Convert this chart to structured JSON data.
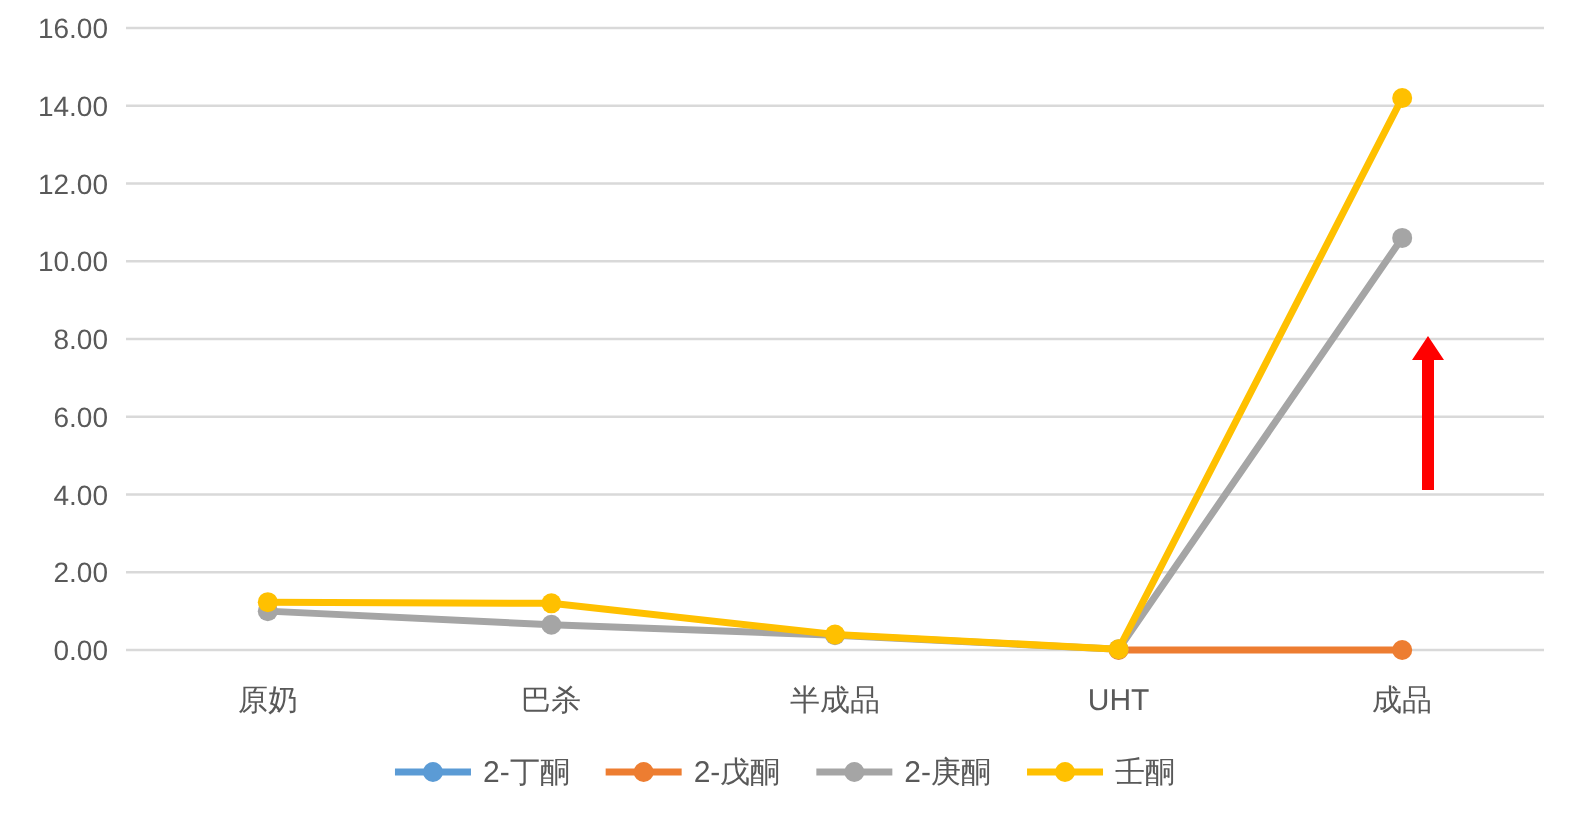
{
  "chart_data": {
    "type": "line",
    "categories": [
      "原奶",
      "巴杀",
      "半成品",
      "UHT",
      "成品"
    ],
    "series": [
      {
        "name": "2-丁酮",
        "color": "#5b9bd5",
        "values": [
          null,
          null,
          null,
          null,
          null
        ]
      },
      {
        "name": "2-戊酮",
        "color": "#ed7d31",
        "values": [
          null,
          null,
          null,
          0,
          0
        ]
      },
      {
        "name": "2-庚酮",
        "color": "#a5a5a5",
        "values": [
          1.0,
          0.65,
          0.38,
          0.02,
          10.6
        ]
      },
      {
        "name": "壬酮",
        "color": "#ffc000",
        "values": [
          1.23,
          1.2,
          0.4,
          0.02,
          14.2
        ]
      }
    ],
    "ylim": [
      0,
      16
    ],
    "yticks": [
      {
        "value": 0,
        "label": "0.00"
      },
      {
        "value": 2,
        "label": "2.00"
      },
      {
        "value": 4,
        "label": "4.00"
      },
      {
        "value": 6,
        "label": "6.00"
      },
      {
        "value": 8,
        "label": "8.00"
      },
      {
        "value": 10,
        "label": "10.00"
      },
      {
        "value": 12,
        "label": "12.00"
      },
      {
        "value": 14,
        "label": "14.00"
      },
      {
        "value": 16,
        "label": "16.00"
      }
    ],
    "grid": "y",
    "legend": "bottom",
    "marker": "circle",
    "line_style": "solid"
  }
}
